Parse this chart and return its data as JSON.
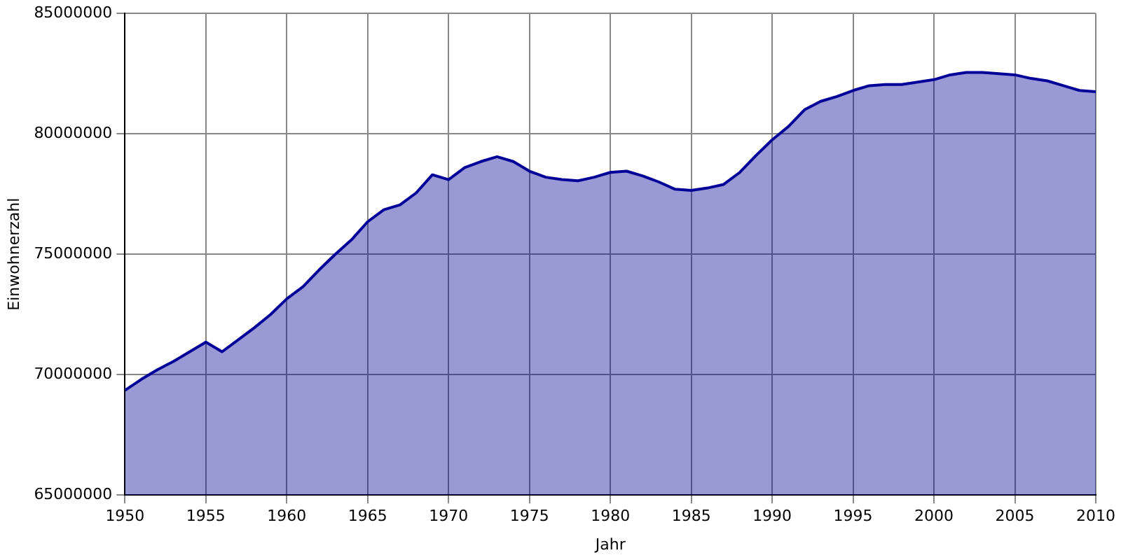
{
  "chart_data": {
    "type": "area",
    "xlabel": "Jahr",
    "ylabel": "Einwohnerzahl",
    "x": [
      1950,
      1951,
      1952,
      1953,
      1954,
      1955,
      1956,
      1957,
      1958,
      1959,
      1960,
      1961,
      1962,
      1963,
      1964,
      1965,
      1966,
      1967,
      1968,
      1969,
      1970,
      1971,
      1972,
      1973,
      1974,
      1975,
      1976,
      1977,
      1978,
      1979,
      1980,
      1981,
      1982,
      1983,
      1984,
      1985,
      1986,
      1987,
      1988,
      1989,
      1990,
      1991,
      1992,
      1993,
      1994,
      1995,
      1996,
      1997,
      1998,
      1999,
      2000,
      2001,
      2002,
      2003,
      2004,
      2005,
      2006,
      2007,
      2008,
      2009,
      2010
    ],
    "values": [
      69350000,
      69800000,
      70200000,
      70550000,
      70950000,
      71350000,
      70950000,
      71450000,
      71950000,
      72500000,
      73150000,
      73650000,
      74350000,
      75000000,
      75600000,
      76350000,
      76850000,
      77050000,
      77550000,
      78300000,
      78100000,
      78600000,
      78850000,
      79050000,
      78850000,
      78450000,
      78200000,
      78100000,
      78050000,
      78200000,
      78400000,
      78450000,
      78250000,
      78000000,
      77700000,
      77650000,
      77750000,
      77900000,
      78400000,
      79100000,
      79750000,
      80300000,
      81000000,
      81350000,
      81550000,
      81800000,
      82000000,
      82050000,
      82050000,
      82150000,
      82250000,
      82450000,
      82550000,
      82550000,
      82500000,
      82450000,
      82300000,
      82200000,
      82000000,
      81800000,
      81750000
    ],
    "color": "#000099",
    "xlim": [
      1950,
      2010
    ],
    "xticks": [
      1950,
      1955,
      1960,
      1965,
      1970,
      1975,
      1980,
      1985,
      1990,
      1995,
      2000,
      2005,
      2010
    ],
    "ylim": [
      65000000,
      85000000
    ],
    "yticks": [
      65000000,
      70000000,
      75000000,
      80000000,
      85000000
    ],
    "grid": true,
    "legend": false
  }
}
